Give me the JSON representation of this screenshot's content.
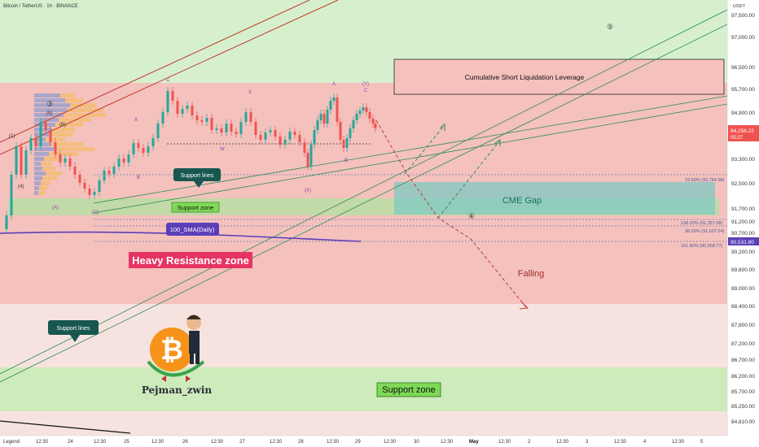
{
  "header": {
    "symbol": "Bitcoin / TetherUS · 1h · BINANCE",
    "currency": "USDT"
  },
  "price_axis": {
    "ticks": [
      "97,500.00",
      "97,000.00",
      "96,500.00",
      "95,700.00",
      "94,900.00",
      "93,300.00",
      "92,500.00",
      "91,700.00",
      "91,200.00",
      "90,700.00",
      "90,200.00",
      "89,600.00",
      "89,000.00",
      "88,400.00",
      "87,800.00",
      "87,200.00",
      "86,700.00",
      "86,200.00",
      "85,700.00",
      "85,250.00",
      "84,810.00"
    ],
    "current_price": "94,256.22",
    "countdown": "05:37",
    "sma_price": "90,531.80"
  },
  "time_axis": {
    "ticks": [
      "Legend",
      "12:30",
      "24",
      "12:30",
      "25",
      "12:30",
      "26",
      "12:30",
      "27",
      "12:30",
      "28",
      "12:30",
      "29",
      "12:30",
      "30",
      "12:30",
      "May",
      "12:30",
      "2",
      "12:30",
      "3",
      "12:30",
      "4",
      "12:30",
      "5"
    ],
    "cursor_label": "May"
  },
  "zones": {
    "heavy_resistance": "Heavy Resistance zone",
    "support_upper": "Support zone",
    "support_lower": "Support zone",
    "cme_gap": "CME Gap",
    "liquidation": "Cumulative Short Liquidation Leverage",
    "sma": "100_SMA(Daily)",
    "support_lines_1": "Support lines",
    "support_lines_2": "Support lines",
    "falling": "Falling"
  },
  "fib_levels": {
    "f236": "23.60% (92,784.08)",
    "f1382": "138.20% (91,357.98)",
    "f382": "38.20% (91,037.24)",
    "f1618": "161.80% (90,558.77)"
  },
  "wave_labels": {
    "w1": "(1)",
    "w4": "(4)",
    "w5c": "(5)",
    "wA": "(A)",
    "wB": "(B)",
    "wC": "(C)",
    "c_top": "C",
    "a_top": "A",
    "b_mid": "B",
    "x_top": "X",
    "w_mid": "W",
    "y_mid": "Y",
    "x_low": "(X)",
    "yc": "(Y)",
    "circle5": "⑤",
    "circle4": "④",
    "circle3": "③"
  },
  "logo": {
    "author": "Pejman_zwin",
    "glyph": "₿"
  },
  "colors": {
    "resistance_fill": "#f2b9b5",
    "support_fill": "#c9e7b5",
    "cme_fill": "#7cc7c4",
    "support_zone_green": "#7ed957",
    "resistance_label": "#e63462",
    "sma_line": "#5b3fb8",
    "bull_candle": "#26a69a",
    "bear_candle": "#ef5350",
    "top_green": "#d8f0cf"
  }
}
